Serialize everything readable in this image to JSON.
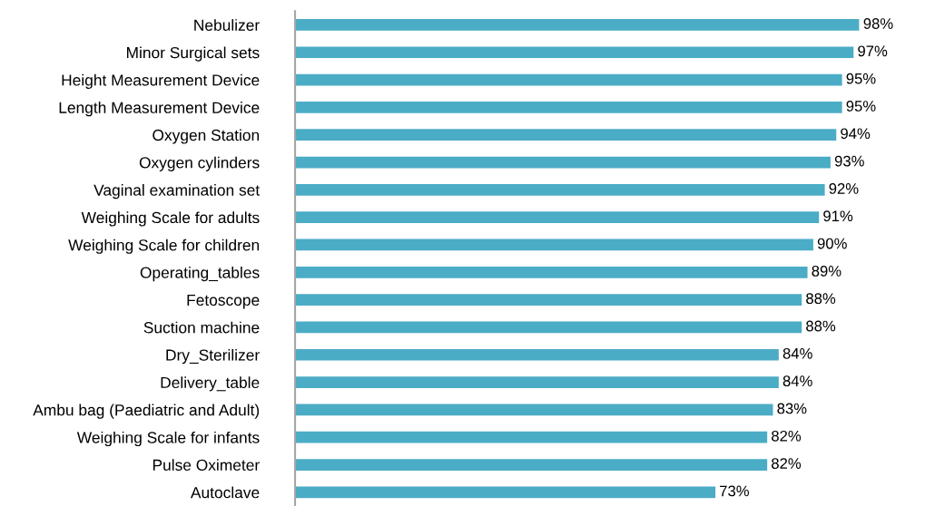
{
  "chart_data": {
    "type": "bar",
    "orientation": "horizontal",
    "categories": [
      "Nebulizer",
      "Minor Surgical sets",
      "Height Measurement Device",
      "Length Measurement Device",
      "Oxygen Station",
      "Oxygen cylinders",
      "Vaginal examination set",
      "Weighing Scale for adults",
      "Weighing Scale for children",
      "Operating_tables",
      "Fetoscope",
      "Suction machine",
      "Dry_Sterilizer",
      "Delivery_table",
      "Ambu bag (Paediatric and Adult)",
      "Weighing Scale for infants",
      "Pulse Oximeter",
      "Autoclave"
    ],
    "values": [
      98,
      97,
      95,
      95,
      94,
      93,
      92,
      91,
      90,
      89,
      88,
      88,
      84,
      84,
      83,
      82,
      82,
      73
    ],
    "value_labels": [
      "98%",
      "97%",
      "95%",
      "95%",
      "94%",
      "93%",
      "92%",
      "91%",
      "90%",
      "89%",
      "88%",
      "88%",
      "84%",
      "84%",
      "83%",
      "82%",
      "82%",
      "73%"
    ],
    "color": "#4bacc6",
    "grid": false,
    "legend": false,
    "tick_labels": "y"
  }
}
